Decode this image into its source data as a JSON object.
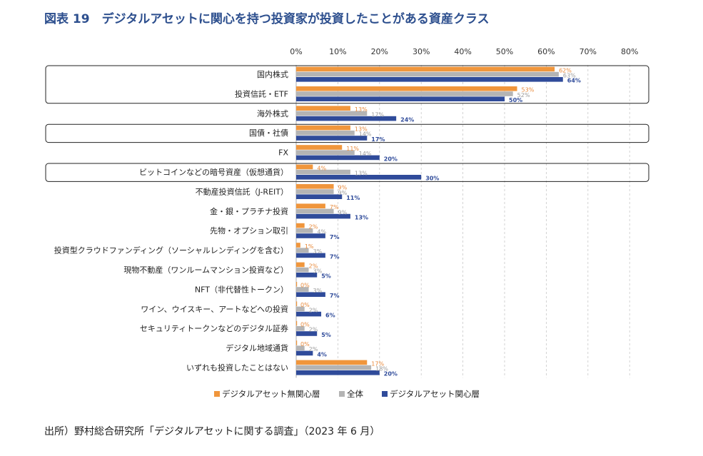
{
  "header": {
    "title": "図表 19　デジタルアセットに関心を持つ投資家が投資したことがある資産クラス"
  },
  "footer": {
    "source": "出所）野村総合研究所「デジタルアセットに関する調査」（2023 年 6 月）"
  },
  "chart_data": {
    "type": "bar",
    "orientation": "horizontal",
    "title": "",
    "xlabel": "",
    "ylabel": "",
    "xlim": [
      0,
      80
    ],
    "tick_labels": [
      "0%",
      "10%",
      "20%",
      "30%",
      "40%",
      "50%",
      "60%",
      "70%",
      "80%"
    ],
    "grid": true,
    "legend_position": "bottom",
    "categories": [
      "国内株式",
      "投資信託・ETF",
      "海外株式",
      "国債・社債",
      "FX",
      "ビットコインなどの暗号資産（仮想通貨）",
      "不動産投資信託（J-REIT）",
      "金・銀・プラチナ投資",
      "先物・オプション取引",
      "投資型クラウドファンディング（ソーシャルレンディングを含む）",
      "現物不動産（ワンルームマンション投資など）",
      "NFT（非代替性トークン）",
      "ワイン、ウイスキー、アートなどへの投資",
      "セキュリティトークンなどのデジタル証券",
      "デジタル地域通貨",
      "いずれも投資したことはない"
    ],
    "highlighted_categories": [
      "国内株式",
      "投資信託・ETF",
      "国債・社債",
      "ビットコインなどの暗号資産（仮想通貨）"
    ],
    "series": [
      {
        "name": "デジタルアセット無関心層",
        "color": "#f0963c",
        "values": [
          62,
          53,
          13,
          13,
          11,
          4,
          9,
          7,
          2,
          1,
          2,
          0,
          0,
          0,
          0,
          17
        ]
      },
      {
        "name": "全体",
        "color": "#b4b4b4",
        "values": [
          63,
          52,
          17,
          14,
          14,
          13,
          9,
          9,
          4,
          3,
          3,
          3,
          2,
          2,
          2,
          18
        ]
      },
      {
        "name": "デジタルアセット関心層",
        "color": "#2f4b9a",
        "values": [
          64,
          50,
          24,
          17,
          20,
          30,
          11,
          13,
          7,
          7,
          5,
          7,
          6,
          5,
          4,
          20
        ]
      }
    ],
    "value_suffix": "%"
  }
}
